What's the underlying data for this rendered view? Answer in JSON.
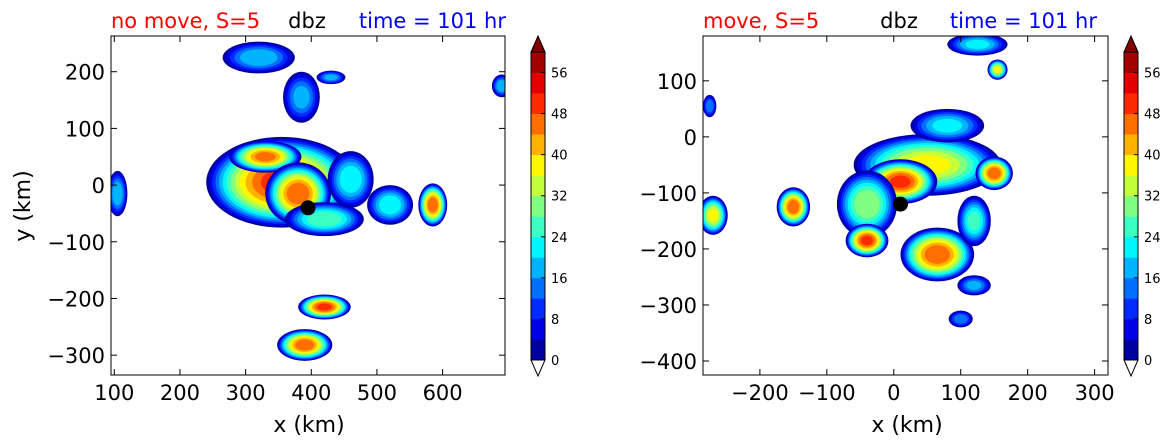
{
  "colors": {
    "title_left": "#ff0000",
    "title_center": "#000000",
    "title_right": "#0000ff",
    "storm_center": "#000000"
  },
  "chart_data": [
    {
      "type": "heatmap",
      "title_left": "no move, S=5",
      "title_center": "dbz",
      "title_right": "time = 101 hr",
      "xlabel": "x (km)",
      "ylabel": "y (km)",
      "xlim": [
        95,
        695
      ],
      "ylim": [
        -335,
        263
      ],
      "xticks": [
        100,
        200,
        300,
        400,
        500,
        600
      ],
      "yticks": [
        200,
        100,
        0,
        -100,
        -200,
        -300
      ],
      "xtick_labels": [
        "100",
        "200",
        "300",
        "400",
        "500",
        "600"
      ],
      "ytick_labels": [
        "200",
        "100",
        "0",
        "−100",
        "−200",
        "−300"
      ],
      "storm_center": {
        "x": 395,
        "y": -40
      },
      "colorbar": {
        "min": 0,
        "max": 60,
        "step": 4,
        "extend": "both",
        "ticks": [
          0,
          8,
          16,
          24,
          32,
          40,
          48,
          56
        ],
        "tick_labels": [
          "0",
          "8",
          "16",
          "24",
          "32",
          "40",
          "48",
          "56"
        ]
      },
      "blobs": [
        {
          "x": 355,
          "y": 5,
          "rx": 115,
          "ry": 80,
          "peak": 52
        },
        {
          "x": 330,
          "y": 50,
          "rx": 55,
          "ry": 28,
          "peak": 48
        },
        {
          "x": 380,
          "y": -15,
          "rx": 50,
          "ry": 55,
          "peak": 50
        },
        {
          "x": 420,
          "y": -60,
          "rx": 60,
          "ry": 30,
          "peak": 30
        },
        {
          "x": 460,
          "y": 10,
          "rx": 35,
          "ry": 50,
          "peak": 26
        },
        {
          "x": 520,
          "y": -35,
          "rx": 35,
          "ry": 35,
          "peak": 26
        },
        {
          "x": 585,
          "y": -35,
          "rx": 22,
          "ry": 38,
          "peak": 50
        },
        {
          "x": 320,
          "y": 225,
          "rx": 55,
          "ry": 28,
          "peak": 22
        },
        {
          "x": 385,
          "y": 155,
          "rx": 28,
          "ry": 45,
          "peak": 20
        },
        {
          "x": 430,
          "y": 190,
          "rx": 22,
          "ry": 12,
          "peak": 20
        },
        {
          "x": 420,
          "y": -215,
          "rx": 40,
          "ry": 22,
          "peak": 52
        },
        {
          "x": 390,
          "y": -282,
          "rx": 42,
          "ry": 28,
          "peak": 50
        },
        {
          "x": 105,
          "y": -15,
          "rx": 15,
          "ry": 40,
          "peak": 22
        },
        {
          "x": 690,
          "y": 175,
          "rx": 15,
          "ry": 20,
          "peak": 22
        }
      ]
    },
    {
      "type": "heatmap",
      "title_left": "move, S=5",
      "title_center": "dbz",
      "title_right": "time = 101 hr",
      "xlabel": "x (km)",
      "ylabel": "",
      "xlim": [
        -285,
        320
      ],
      "ylim": [
        -425,
        180
      ],
      "xticks": [
        -200,
        -100,
        0,
        100,
        200,
        300
      ],
      "yticks": [
        100,
        0,
        -100,
        -200,
        -300,
        -400
      ],
      "xtick_labels": [
        "−200",
        "−100",
        "0",
        "100",
        "200",
        "300"
      ],
      "ytick_labels": [
        "100",
        "0",
        "−100",
        "−200",
        "−300",
        "−400"
      ],
      "storm_center": {
        "x": 10,
        "y": -120
      },
      "colorbar": {
        "min": 0,
        "max": 60,
        "step": 4,
        "extend": "both",
        "ticks": [
          0,
          8,
          16,
          24,
          32,
          40,
          48,
          56
        ],
        "tick_labels": [
          "0",
          "8",
          "16",
          "24",
          "32",
          "40",
          "48",
          "56"
        ]
      },
      "blobs": [
        {
          "x": 50,
          "y": -50,
          "rx": 110,
          "ry": 55,
          "peak": 40
        },
        {
          "x": 10,
          "y": -80,
          "rx": 55,
          "ry": 40,
          "peak": 52
        },
        {
          "x": 150,
          "y": -65,
          "rx": 28,
          "ry": 30,
          "peak": 50
        },
        {
          "x": 80,
          "y": 20,
          "rx": 55,
          "ry": 30,
          "peak": 24
        },
        {
          "x": -40,
          "y": -120,
          "rx": 45,
          "ry": 60,
          "peak": 34
        },
        {
          "x": -40,
          "y": -185,
          "rx": 32,
          "ry": 30,
          "peak": 52
        },
        {
          "x": -150,
          "y": -125,
          "rx": 25,
          "ry": 35,
          "peak": 50
        },
        {
          "x": 65,
          "y": -210,
          "rx": 55,
          "ry": 48,
          "peak": 50
        },
        {
          "x": 120,
          "y": -150,
          "rx": 25,
          "ry": 45,
          "peak": 28
        },
        {
          "x": 125,
          "y": 165,
          "rx": 45,
          "ry": 20,
          "peak": 24
        },
        {
          "x": 155,
          "y": 120,
          "rx": 15,
          "ry": 18,
          "peak": 40
        },
        {
          "x": -270,
          "y": -140,
          "rx": 22,
          "ry": 35,
          "peak": 40
        },
        {
          "x": -275,
          "y": 55,
          "rx": 10,
          "ry": 20,
          "peak": 18
        },
        {
          "x": 120,
          "y": -265,
          "rx": 25,
          "ry": 18,
          "peak": 20
        },
        {
          "x": 100,
          "y": -325,
          "rx": 18,
          "ry": 15,
          "peak": 18
        }
      ]
    }
  ]
}
